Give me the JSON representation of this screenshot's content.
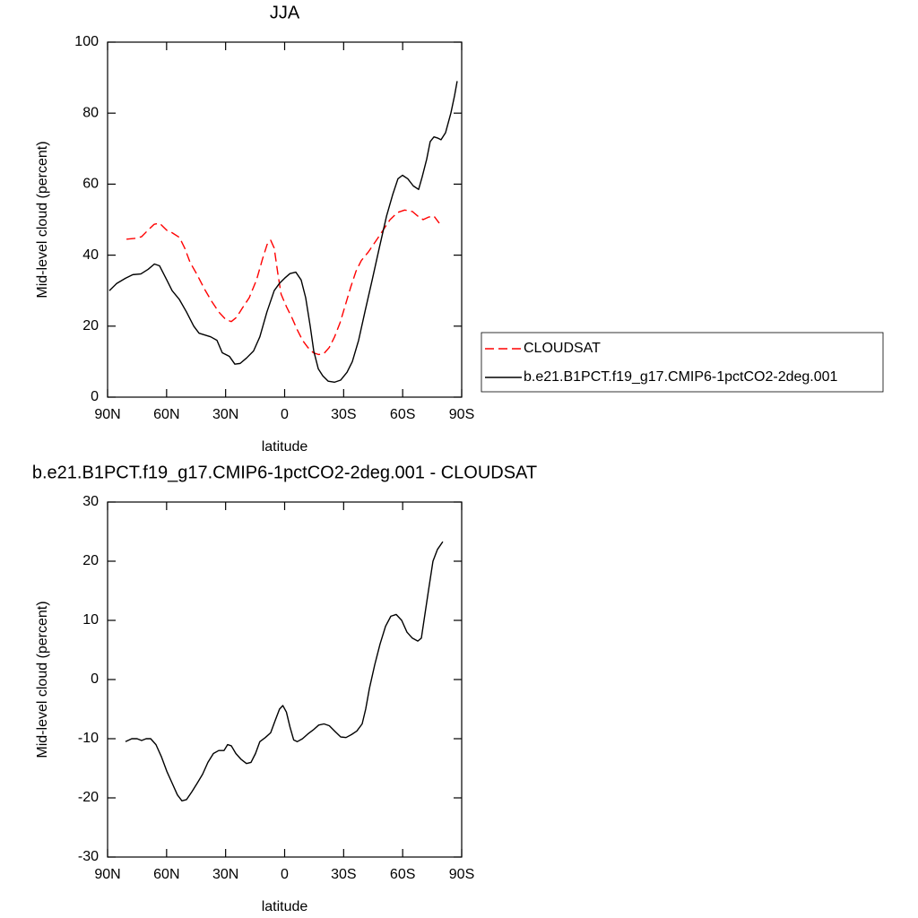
{
  "chart_data": [
    {
      "type": "line",
      "title": "JJA",
      "xlabel": "latitude",
      "ylabel": "Mid-level cloud (percent)",
      "xlim": [
        90,
        -90
      ],
      "xticks": [
        {
          "value": 90,
          "label": "90N"
        },
        {
          "value": 60,
          "label": "60N"
        },
        {
          "value": 30,
          "label": "30N"
        },
        0,
        {
          "value": -30,
          "label": "30S"
        },
        {
          "value": -60,
          "label": "60S"
        },
        {
          "value": -90,
          "label": "90S"
        }
      ],
      "ylim": [
        0,
        100
      ],
      "yticks": [
        0,
        20,
        40,
        60,
        80,
        100
      ],
      "legend": "outside-right",
      "series": [
        {
          "name": "CLOUDSAT",
          "color": "#ff0000",
          "dashed": true,
          "x": [
            80.4,
            76.3,
            72.7,
            69.5,
            66.3,
            63.6,
            59.9,
            57.2,
            53.5,
            50.8,
            48.1,
            44.5,
            40.8,
            37.1,
            33.5,
            29.8,
            27.1,
            24.4,
            21.6,
            18.0,
            14.3,
            11.2,
            8.9,
            7.1,
            5.3,
            3.5,
            1.8,
            -0.9,
            -3.6,
            -6.4,
            -9.1,
            -11.8,
            -14.6,
            -17.3,
            -20.0,
            -22.7,
            -25.4,
            -28.2,
            -30.9,
            -33.6,
            -36.3,
            -39.0,
            -42.7,
            -46.4,
            -50.0,
            -53.6,
            -57.3,
            -61.0,
            -64.9,
            -67.7,
            -70.4,
            -73.1,
            -75.9,
            -78.6
          ],
          "values": [
            44.5,
            44.7,
            45.2,
            47,
            48.7,
            49,
            47,
            46.3,
            45,
            42,
            38,
            34.5,
            30.5,
            27,
            24,
            21.8,
            21.3,
            22.5,
            25,
            28,
            33,
            39,
            43,
            44.2,
            42,
            35,
            29,
            25.5,
            22.5,
            19,
            16,
            14,
            12.5,
            12,
            12.3,
            14,
            17,
            21,
            26,
            31,
            35.5,
            38.5,
            41,
            44,
            47,
            50,
            52,
            52.7,
            52.3,
            51,
            50,
            50.7,
            51,
            49
          ]
        },
        {
          "name": "b.e21.B1PCT.f19_g17.CMIP6-1pctCO2-2deg.001",
          "color": "#000000",
          "dashed": false,
          "x": [
            89.1,
            85.4,
            80.9,
            77.2,
            73.1,
            69.4,
            66.2,
            63.6,
            59.9,
            57.2,
            53.5,
            49.9,
            46.2,
            43.5,
            37.6,
            34.4,
            31.7,
            28.1,
            25.3,
            22.6,
            19.4,
            15.8,
            12.6,
            9.0,
            5.3,
            2.7,
            0,
            -2.7,
            -5.7,
            -8.4,
            -10.7,
            -13.0,
            -14.8,
            -17.1,
            -19.4,
            -22.1,
            -25.3,
            -28.5,
            -31.7,
            -34.4,
            -37.6,
            -40.8,
            -44.5,
            -48.1,
            -51.8,
            -54.9,
            -57.6,
            -59.9,
            -62.6,
            -65.4,
            -68.1,
            -69.9,
            -72.2,
            -74.0,
            -75.9,
            -77.7,
            -79.5,
            -81.8,
            -84.5,
            -86.4,
            -87.7
          ],
          "values": [
            30,
            32,
            33.5,
            34.5,
            34.7,
            36,
            37.5,
            37,
            33,
            30,
            27.5,
            24,
            20,
            18,
            17,
            16,
            12.5,
            11.5,
            9.3,
            9.5,
            11,
            13,
            17,
            24,
            30,
            32,
            33.5,
            34.8,
            35.2,
            33,
            28,
            20,
            13,
            8,
            6,
            4.5,
            4.2,
            4.8,
            7,
            10,
            16,
            24,
            33,
            42,
            51,
            57,
            61.5,
            62.5,
            61.5,
            59.5,
            58.5,
            62,
            67,
            72,
            73.3,
            73,
            72.5,
            74.5,
            80,
            85,
            89
          ]
        }
      ]
    },
    {
      "type": "line",
      "title": "b.e21.B1PCT.f19_g17.CMIP6-1pctCO2-2deg.001 - CLOUDSAT",
      "xlabel": "latitude",
      "ylabel": "Mid-level cloud (percent)",
      "xlim": [
        90,
        -90
      ],
      "xticks": [
        {
          "value": 90,
          "label": "90N"
        },
        {
          "value": 60,
          "label": "60N"
        },
        {
          "value": 30,
          "label": "30N"
        },
        0,
        {
          "value": -30,
          "label": "30S"
        },
        {
          "value": -60,
          "label": "60S"
        },
        {
          "value": -90,
          "label": "90S"
        }
      ],
      "ylim": [
        -30,
        30
      ],
      "yticks": [
        -30,
        -20,
        -10,
        0,
        10,
        20,
        30
      ],
      "series": [
        {
          "color": "#000000",
          "dashed": false,
          "x": [
            80.9,
            77.7,
            75.0,
            72.7,
            70.4,
            68.1,
            65.4,
            62.7,
            59.9,
            57.2,
            54.5,
            52.2,
            49.9,
            47.2,
            44.4,
            41.7,
            39.0,
            36.2,
            33.5,
            30.8,
            29.0,
            27.1,
            24.8,
            22.1,
            19.4,
            17.1,
            14.8,
            12.6,
            9.8,
            7.1,
            4.9,
            2.6,
            0.9,
            -0.9,
            -2.7,
            -4.6,
            -6.4,
            -9.1,
            -11.8,
            -14.6,
            -17.3,
            -20.0,
            -22.7,
            -25.7,
            -28.5,
            -31.2,
            -34.0,
            -36.7,
            -39.4,
            -41.2,
            -43.1,
            -45.8,
            -48.5,
            -51.3,
            -54.0,
            -56.7,
            -59.5,
            -62.2,
            -64.9,
            -67.7,
            -69.5,
            -71.3,
            -73.1,
            -75.4,
            -77.7,
            -80.4
          ],
          "values": [
            -10.5,
            -10,
            -10,
            -10.3,
            -10,
            -10,
            -11,
            -13,
            -15.5,
            -17.5,
            -19.5,
            -20.5,
            -20.3,
            -19,
            -17.5,
            -16,
            -14,
            -12.5,
            -12,
            -12,
            -11,
            -11.2,
            -12.5,
            -13.5,
            -14.2,
            -14,
            -12.5,
            -10.5,
            -9.8,
            -9,
            -7,
            -5,
            -4.4,
            -5.5,
            -8,
            -10.2,
            -10.5,
            -10,
            -9.2,
            -8.5,
            -7.7,
            -7.5,
            -7.8,
            -8.8,
            -9.7,
            -9.8,
            -9.3,
            -8.7,
            -7.5,
            -5,
            -1.5,
            2.5,
            6,
            9,
            10.7,
            11,
            10,
            8,
            7,
            6.5,
            7,
            11,
            15,
            20,
            22,
            23.3
          ]
        }
      ]
    }
  ]
}
